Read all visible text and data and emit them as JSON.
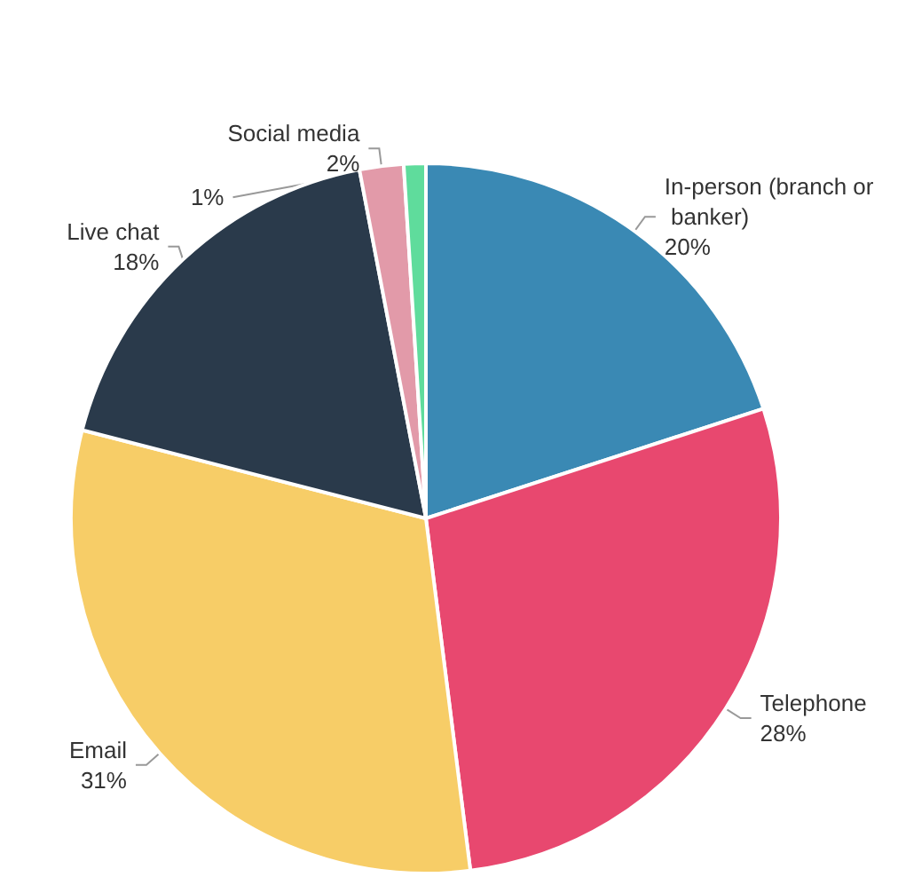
{
  "chart_data": {
    "type": "pie",
    "categories": [
      "In-person (branch or banker)",
      "Telephone",
      "Email",
      "Live chat",
      "Social media",
      null
    ],
    "values": [
      20,
      28,
      31,
      18,
      2,
      1
    ],
    "value_labels": [
      "20%",
      "28%",
      "31%",
      "18%",
      "2%",
      "1%"
    ],
    "colors": [
      "#3a89b4",
      "#e8486f",
      "#f7cd67",
      "#2a3a4b",
      "#e29aa9",
      "#5fdc9c"
    ]
  }
}
